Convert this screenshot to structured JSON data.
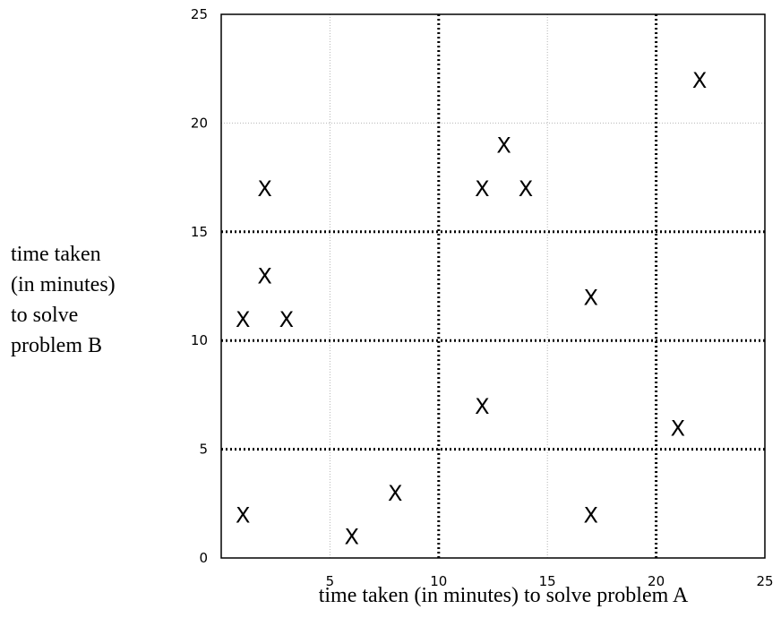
{
  "chart_data": {
    "type": "scatter",
    "xlabel": "time taken (in minutes) to solve problem A",
    "ylabel_lines": [
      "time taken",
      "(in minutes)",
      "to solve",
      "problem B"
    ],
    "marker": "X",
    "xlim": [
      0,
      25
    ],
    "ylim": [
      0,
      25
    ],
    "x_ticks": [
      5,
      10,
      15,
      20,
      25
    ],
    "y_ticks": [
      0,
      5,
      10,
      15,
      20,
      25
    ],
    "points": [
      {
        "x": 1,
        "y": 11
      },
      {
        "x": 1,
        "y": 2
      },
      {
        "x": 2,
        "y": 17
      },
      {
        "x": 2,
        "y": 13
      },
      {
        "x": 3,
        "y": 11
      },
      {
        "x": 6,
        "y": 1
      },
      {
        "x": 8,
        "y": 3
      },
      {
        "x": 12,
        "y": 17
      },
      {
        "x": 12,
        "y": 7
      },
      {
        "x": 13,
        "y": 19
      },
      {
        "x": 14,
        "y": 17
      },
      {
        "x": 17,
        "y": 12
      },
      {
        "x": 17,
        "y": 2
      },
      {
        "x": 21,
        "y": 6
      },
      {
        "x": 22,
        "y": 22
      }
    ],
    "grid": {
      "minor_dotted_gray": [
        5,
        15
      ],
      "major_dotted_black": [
        10,
        20
      ],
      "major_dotted_black_horizontal": [
        5,
        10,
        15
      ]
    }
  }
}
